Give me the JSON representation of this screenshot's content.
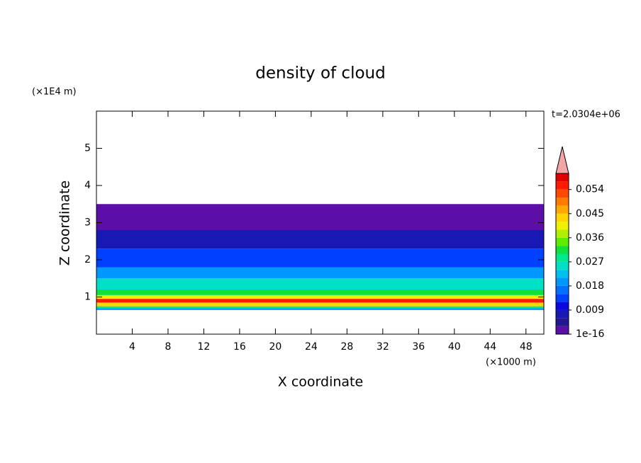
{
  "chart_data": {
    "type": "contour",
    "title": "density of cloud",
    "xlabel": "X coordinate",
    "ylabel": "Z coordinate",
    "xunit": "(×1000 m)",
    "yunit": "(×1E4 m)",
    "annotation": "t=2.0304e+06",
    "xlim": [
      0,
      50
    ],
    "xticks": [
      4,
      8,
      12,
      16,
      20,
      24,
      28,
      32,
      36,
      40,
      44,
      48
    ],
    "ylim": [
      0,
      6
    ],
    "yticks": [
      1,
      2,
      3,
      4,
      5
    ],
    "profile": {
      "z_edges": [
        0.65,
        0.7,
        0.75,
        0.85,
        0.95,
        1.05,
        1.2,
        1.5,
        1.8,
        2.3,
        2.8,
        3.5
      ],
      "values": [
        0.018,
        0.027,
        0.042,
        0.054,
        0.039,
        0.03,
        0.024,
        0.018,
        0.012,
        0.006,
        0.001
      ]
    },
    "colorbar": {
      "levels": [
        1e-16,
        0.003,
        0.006,
        0.009,
        0.012,
        0.015,
        0.018,
        0.021,
        0.024,
        0.027,
        0.03,
        0.033,
        0.036,
        0.039,
        0.042,
        0.045,
        0.048,
        0.051,
        0.054,
        0.057,
        0.06
      ],
      "colors": [
        "#5b0fa8",
        "#23178f",
        "#1818b4",
        "#0a0ae0",
        "#0040ff",
        "#0070ff",
        "#0098ff",
        "#00c0f0",
        "#00e0c8",
        "#00e890",
        "#10e040",
        "#60ec00",
        "#b0f000",
        "#f0f000",
        "#ffd400",
        "#ffa800",
        "#ff7c00",
        "#ff4800",
        "#ff1a00",
        "#e00000"
      ],
      "over_color": "#f4a6a6",
      "ticks": [
        {
          "value": 1e-16,
          "label": "1e-16"
        },
        0.009,
        0.018,
        0.027,
        0.036,
        0.045,
        0.054
      ]
    }
  }
}
